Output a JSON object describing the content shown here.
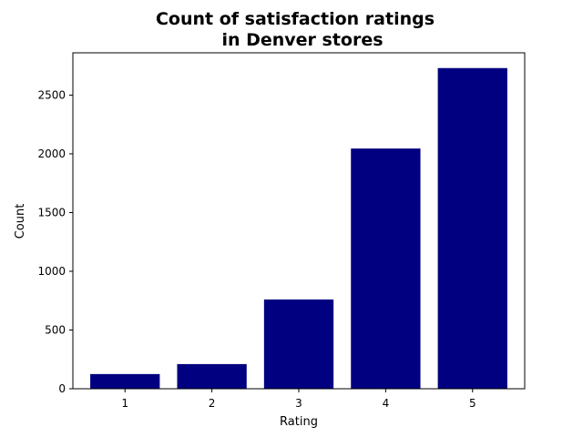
{
  "chart_data": {
    "type": "bar",
    "title_lines": [
      "Count of satisfaction ratings",
      "in Denver stores"
    ],
    "xlabel": "Rating",
    "ylabel": "Count",
    "categories": [
      "1",
      "2",
      "3",
      "4",
      "5"
    ],
    "values": [
      125,
      210,
      760,
      2045,
      2730
    ],
    "ylim": [
      0,
      2860
    ],
    "yticks": [
      0,
      500,
      1000,
      1500,
      2000,
      2500
    ],
    "grid": false,
    "bar_color": "#000080"
  }
}
